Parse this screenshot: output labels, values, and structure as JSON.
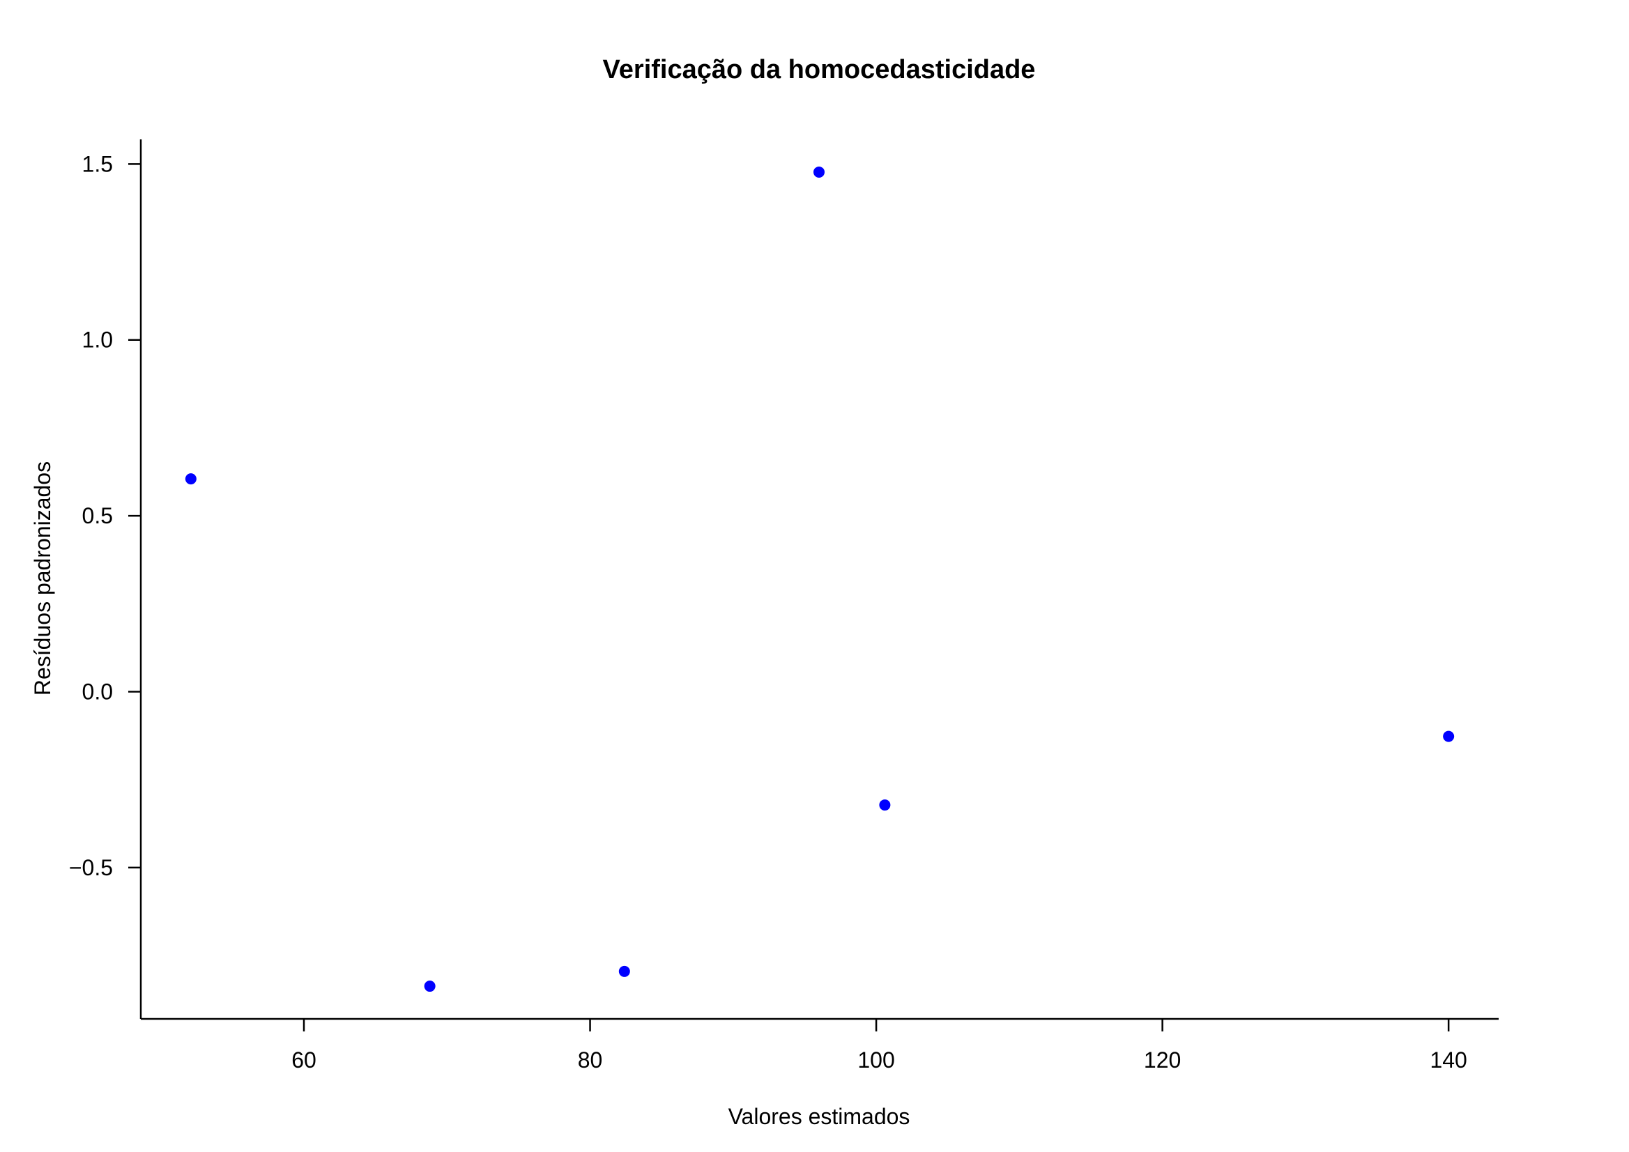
{
  "chart_data": {
    "type": "scatter",
    "title": "Verificação da homocedasticidade",
    "xlabel": "Valores estimados",
    "ylabel": "Resíduos padronizados",
    "xlim": [
      48.6,
      143.5
    ],
    "ylim": [
      -0.93,
      1.57
    ],
    "xticks": [
      60,
      80,
      100,
      120,
      140
    ],
    "xtick_labels": [
      "60",
      "80",
      "100",
      "120",
      "140"
    ],
    "yticks": [
      -0.5,
      0.0,
      0.5,
      1.0,
      1.5
    ],
    "ytick_labels": [
      "−0.5",
      "0.0",
      "0.5",
      "1.0",
      "1.5"
    ],
    "grid": false,
    "point_color": "#0000ff",
    "points": [
      {
        "x": 52.1,
        "y": 0.605
      },
      {
        "x": 68.8,
        "y": -0.837
      },
      {
        "x": 82.4,
        "y": -0.795
      },
      {
        "x": 96.0,
        "y": 1.477
      },
      {
        "x": 100.6,
        "y": -0.322
      },
      {
        "x": 140.0,
        "y": -0.127
      }
    ]
  }
}
